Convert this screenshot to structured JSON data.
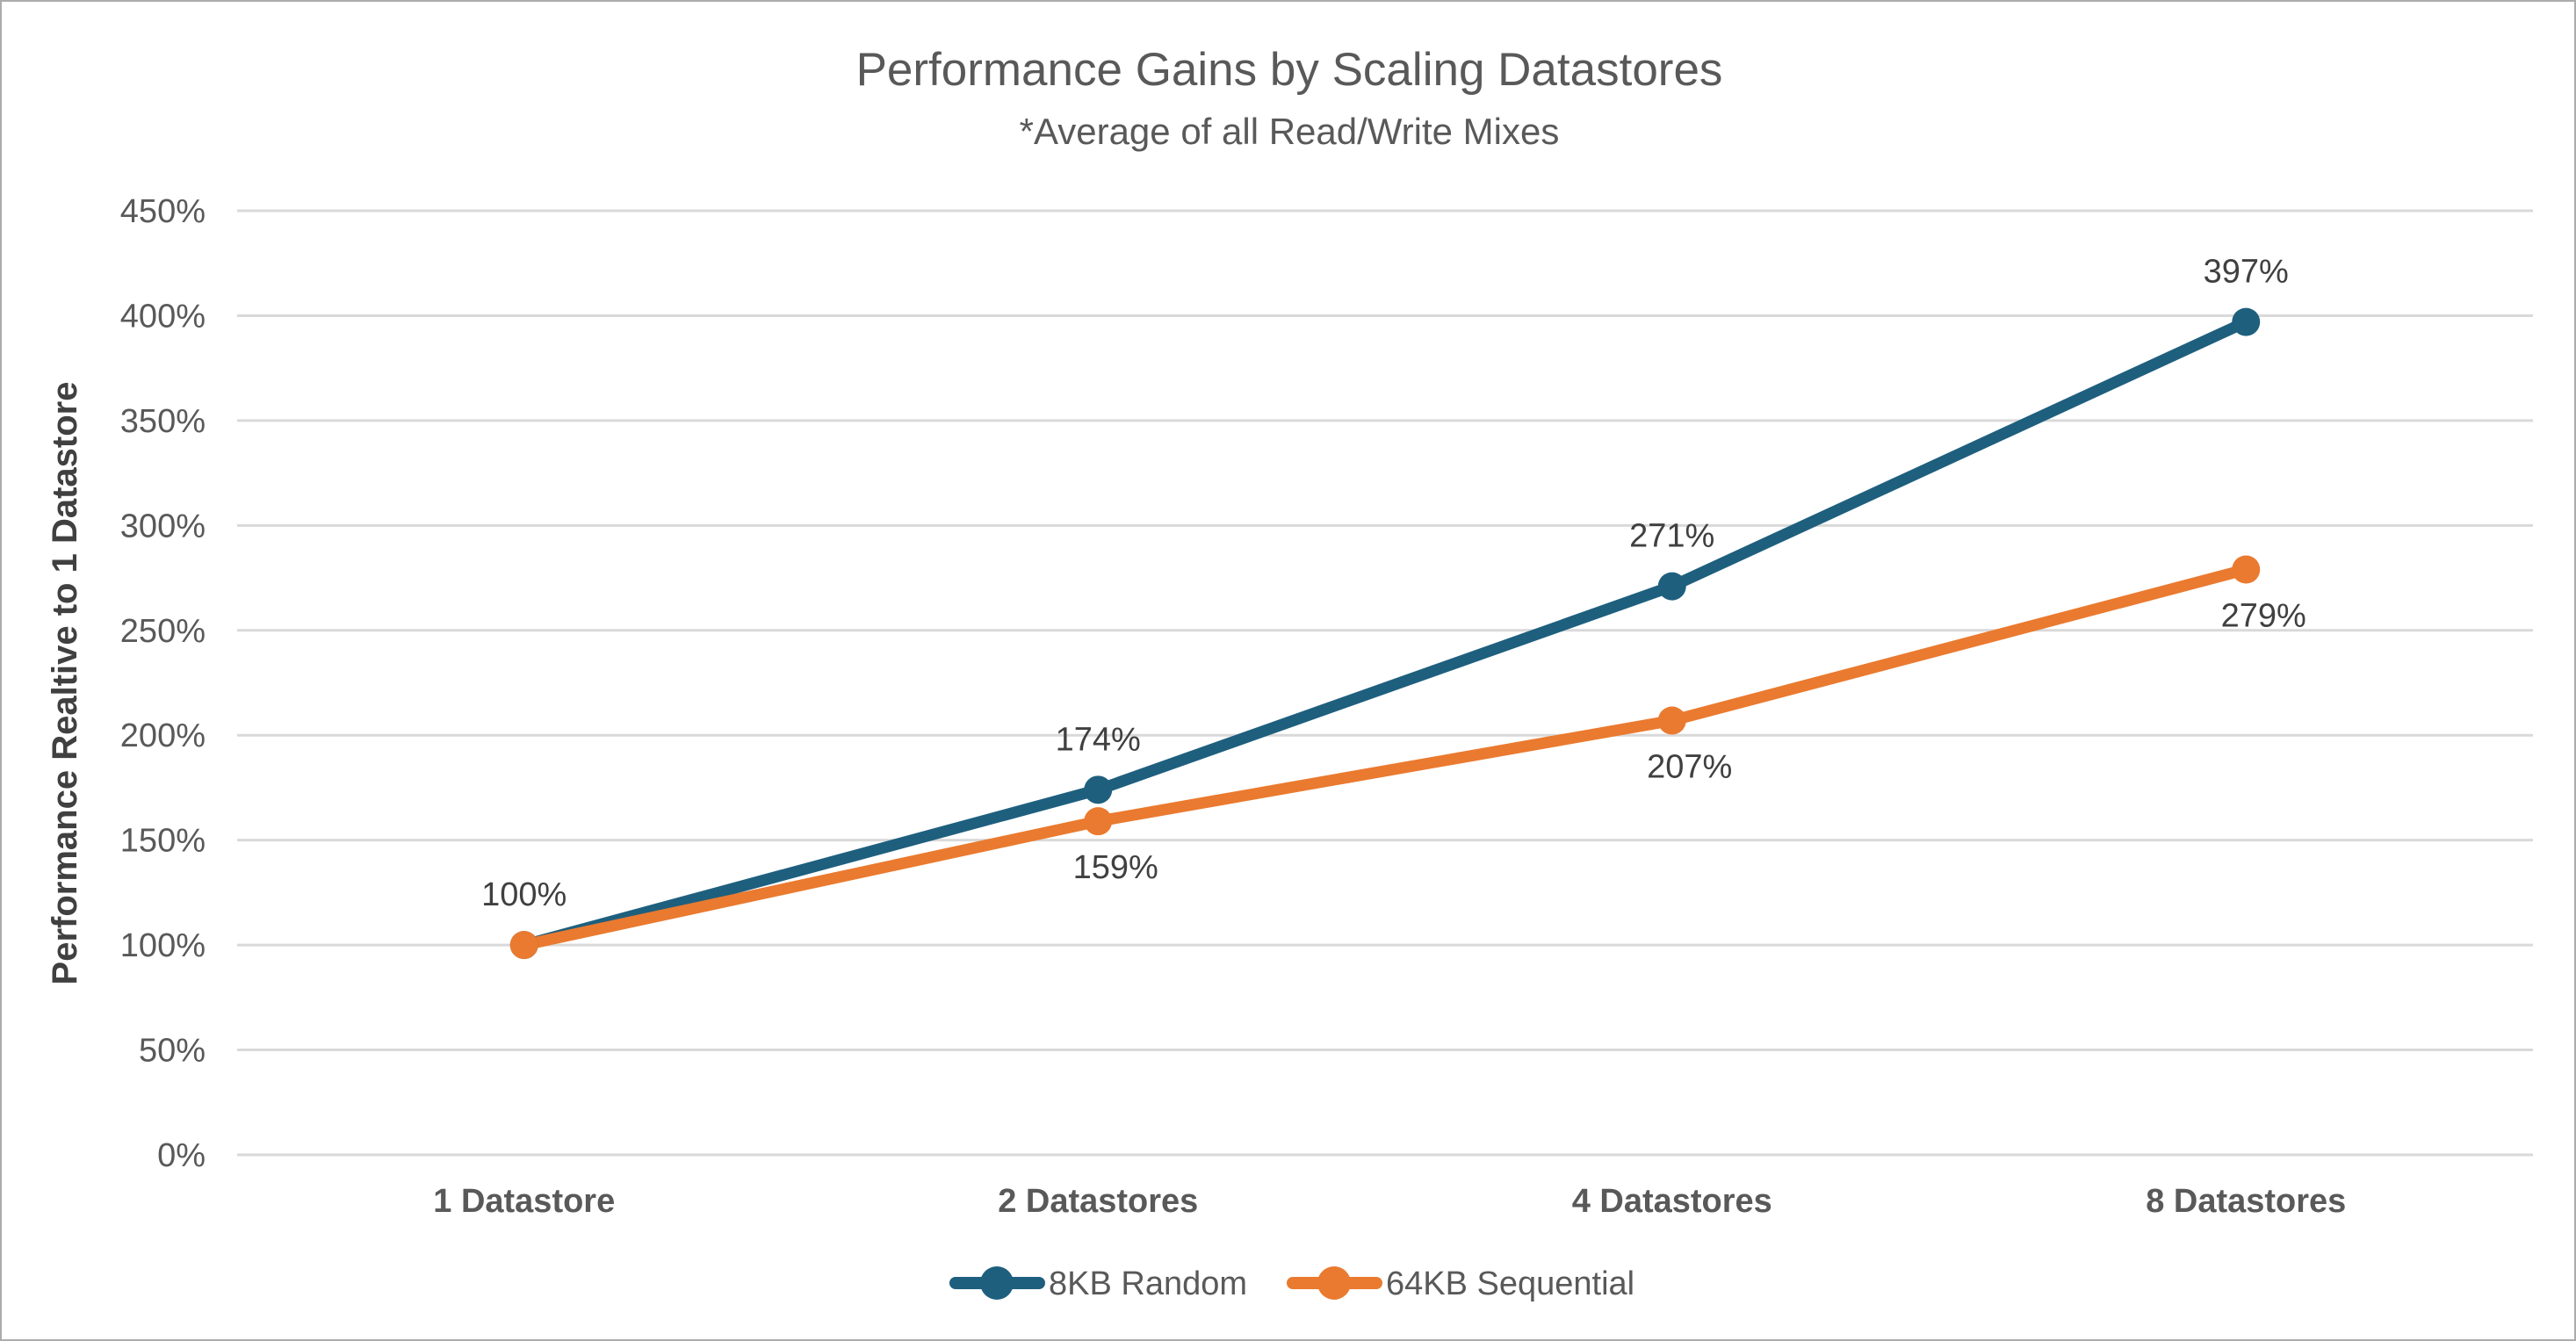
{
  "frame": {
    "background": "#FFFFFF",
    "border_color": "#ACACAC"
  },
  "chart_data": {
    "type": "line",
    "title": "Performance Gains by Scaling Datastores",
    "subtitle": "*Average of all Read/Write Mixes",
    "ylabel": "Performance Realtive to 1 Datastore",
    "xlabel": "",
    "categories": [
      "1 Datastore",
      "2 Datastores",
      "4 Datastores",
      "8 Datastores"
    ],
    "series": [
      {
        "name": "8KB Random",
        "color": "#1E5F7E",
        "values": [
          100,
          174,
          271,
          397
        ],
        "labels": [
          "100%",
          "174%",
          "271%",
          "397%"
        ],
        "label_position": "above"
      },
      {
        "name": "64KB Sequential",
        "color": "#EA7A2F",
        "values": [
          100,
          159,
          207,
          279
        ],
        "labels": [
          null,
          "159%",
          "207%",
          "279%"
        ],
        "label_position": "below"
      }
    ],
    "ylim": [
      0,
      450
    ],
    "ytick_step": 50,
    "ytick_labels": [
      "0%",
      "50%",
      "100%",
      "150%",
      "200%",
      "250%",
      "300%",
      "350%",
      "400%",
      "450%"
    ],
    "grid": "horizontal",
    "gridline_color": "#D9D9D9",
    "legend_position": "bottom",
    "text_colors": {
      "title": "#595959",
      "axis": "#595959",
      "data_label": "#404040",
      "axis_title": "#404040"
    }
  }
}
